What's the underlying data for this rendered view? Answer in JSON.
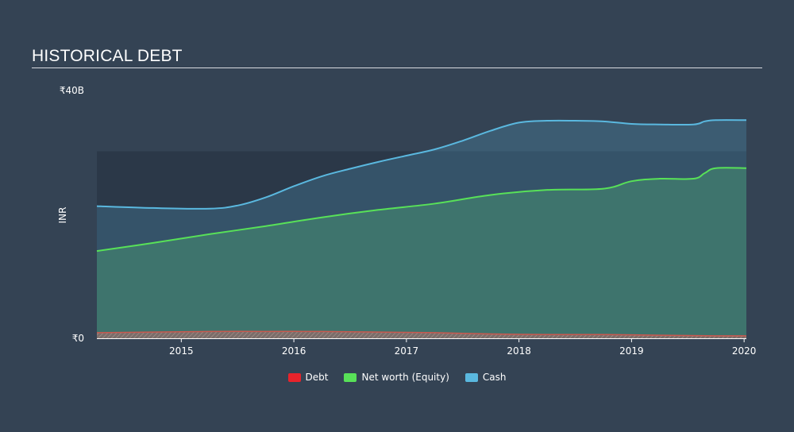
{
  "title": "HISTORICAL DEBT",
  "chart_data": {
    "type": "area",
    "ylabel": "INR",
    "ylim": [
      0,
      40
    ],
    "y_unit": "B",
    "y_ticks": [
      {
        "value": 0,
        "label": "₹0"
      },
      {
        "value": 40,
        "label": "₹40B"
      }
    ],
    "xlim": [
      2014.25,
      2020.02
    ],
    "x_ticks": [
      2015,
      2016,
      2017,
      2018,
      2019,
      2020
    ],
    "shaded_band": [
      0,
      30
    ],
    "legend_position": "bottom-center",
    "series": [
      {
        "name": "Debt",
        "color": "#e8232b",
        "x": [
          2014.25,
          2014.75,
          2015.25,
          2015.75,
          2016.25,
          2016.75,
          2017.25,
          2017.75,
          2018.25,
          2018.75,
          2019.25,
          2019.75,
          2020.02
        ],
        "values": [
          0.9,
          1.0,
          1.1,
          1.1,
          1.1,
          1.0,
          0.9,
          0.7,
          0.6,
          0.6,
          0.5,
          0.4,
          0.4
        ]
      },
      {
        "name": "Net worth (Equity)",
        "color": "#58e158",
        "x": [
          2014.25,
          2014.75,
          2015.25,
          2015.75,
          2016.25,
          2016.75,
          2017.25,
          2017.75,
          2018.25,
          2018.75,
          2019.0,
          2019.25,
          2019.55,
          2019.65,
          2019.75,
          2020.02
        ],
        "values": [
          14.0,
          15.3,
          16.7,
          18.0,
          19.4,
          20.6,
          21.6,
          23.0,
          23.8,
          24.0,
          25.2,
          25.6,
          25.6,
          26.5,
          27.3,
          27.3
        ]
      },
      {
        "name": "Cash",
        "color": "#5ab8df",
        "x": [
          2014.25,
          2014.75,
          2015.25,
          2015.5,
          2015.75,
          2016.0,
          2016.25,
          2016.5,
          2016.75,
          2017.0,
          2017.25,
          2017.5,
          2017.75,
          2018.0,
          2018.25,
          2018.5,
          2018.75,
          2019.0,
          2019.25,
          2019.55,
          2019.65,
          2019.75,
          2020.02
        ],
        "values": [
          21.2,
          20.9,
          20.8,
          21.3,
          22.6,
          24.4,
          26.0,
          27.2,
          28.3,
          29.3,
          30.3,
          31.7,
          33.3,
          34.6,
          34.9,
          34.9,
          34.8,
          34.4,
          34.3,
          34.3,
          34.8,
          35.0,
          35.0
        ]
      }
    ]
  },
  "legend": {
    "debt": {
      "label": "Debt",
      "color": "#e8232b"
    },
    "equity": {
      "label": "Net worth (Equity)",
      "color": "#58e158"
    },
    "cash": {
      "label": "Cash",
      "color": "#5ab8df"
    }
  }
}
